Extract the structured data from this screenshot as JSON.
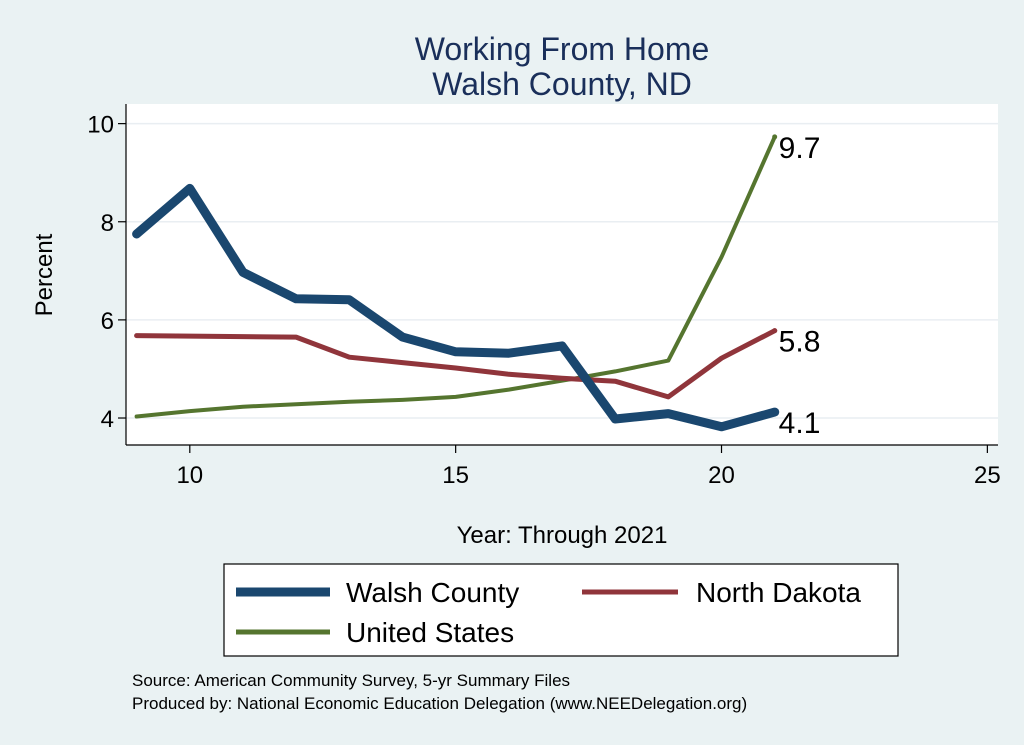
{
  "chart_data": {
    "type": "line",
    "title": "Working From Home",
    "subtitle": "Walsh County, ND",
    "xlabel": "Year: Through 2021",
    "ylabel": "Percent",
    "xlim": [
      8.8,
      25.2
    ],
    "ylim": [
      3.45,
      10.4
    ],
    "xticks": [
      10,
      15,
      20,
      25
    ],
    "yticks": [
      4,
      6,
      8,
      10
    ],
    "grid": true,
    "legend_position": "bottom",
    "series": [
      {
        "name": "Walsh County",
        "color": "#1a476f",
        "x": [
          9,
          10,
          11,
          12,
          13,
          14,
          15,
          16,
          17,
          18,
          19,
          20,
          21
        ],
        "values": [
          7.75,
          8.68,
          6.97,
          6.43,
          6.41,
          5.65,
          5.35,
          5.32,
          5.47,
          3.98,
          4.09,
          3.82,
          4.12
        ],
        "end_label": "4.1"
      },
      {
        "name": "North Dakota",
        "color": "#90353b",
        "x": [
          9,
          10,
          11,
          12,
          13,
          14,
          15,
          16,
          17,
          18,
          19,
          20,
          21
        ],
        "values": [
          5.68,
          5.67,
          5.66,
          5.65,
          5.24,
          5.13,
          5.02,
          4.89,
          4.81,
          4.75,
          4.43,
          5.22,
          5.78
        ],
        "end_label": "5.8"
      },
      {
        "name": "United States",
        "color": "#55752f",
        "x": [
          9,
          10,
          11,
          12,
          13,
          14,
          15,
          16,
          17,
          18,
          19,
          20,
          21
        ],
        "values": [
          4.03,
          4.14,
          4.23,
          4.28,
          4.33,
          4.37,
          4.43,
          4.58,
          4.76,
          4.95,
          5.17,
          7.28,
          9.73
        ],
        "end_label": "9.7"
      }
    ]
  },
  "notes": {
    "source": "Source: American Community Survey, 5-yr Summary Files",
    "produced": "Produced by: National Economic Education Delegation (www.NEEDelegation.org)"
  }
}
